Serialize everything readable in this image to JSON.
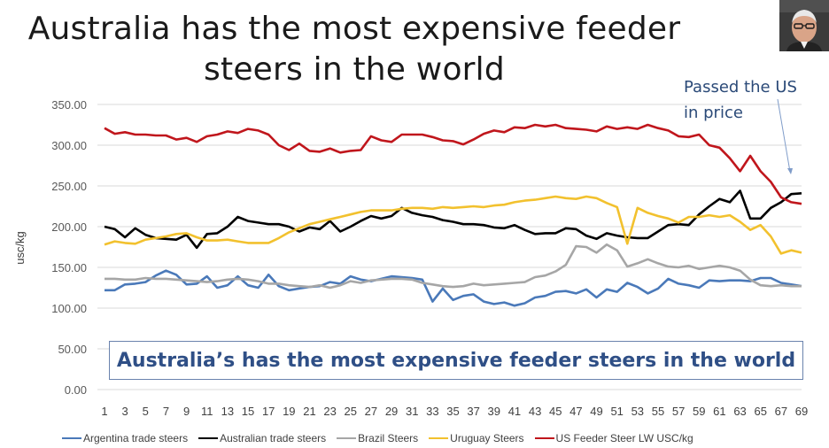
{
  "title_line1": "Australia has the most expensive feeder",
  "title_line2": "steers in the world",
  "annotation_line1": "Passed the US",
  "annotation_line2": "in price",
  "callout_text": "Australia’s has the most expensive feeder steers in the world",
  "chart_data": {
    "type": "line",
    "ylabel": "usc/kg",
    "xlabel": "",
    "ylim": [
      0,
      350
    ],
    "yticks": [
      "0.00",
      "50.00",
      "100.00",
      "150.00",
      "200.00",
      "250.00",
      "300.00",
      "350.00"
    ],
    "x": [
      1,
      2,
      3,
      4,
      5,
      6,
      7,
      8,
      9,
      10,
      11,
      12,
      13,
      14,
      15,
      16,
      17,
      18,
      19,
      20,
      21,
      22,
      23,
      24,
      25,
      26,
      27,
      28,
      29,
      30,
      31,
      32,
      33,
      34,
      35,
      36,
      37,
      38,
      39,
      40,
      41,
      42,
      43,
      44,
      45,
      46,
      47,
      48,
      49,
      50,
      51,
      52,
      53,
      54,
      55,
      56,
      57,
      58,
      59,
      60,
      61,
      62,
      63,
      64,
      65,
      66,
      67,
      68,
      69
    ],
    "xtick_labels": [
      "1",
      "3",
      "5",
      "7",
      "9",
      "11",
      "13",
      "15",
      "17",
      "19",
      "21",
      "23",
      "25",
      "27",
      "29",
      "31",
      "33",
      "35",
      "37",
      "39",
      "41",
      "43",
      "45",
      "47",
      "49",
      "51",
      "53",
      "55",
      "57",
      "59",
      "61",
      "63",
      "65",
      "67",
      "69"
    ],
    "grid": true,
    "legend_position": "bottom",
    "series": [
      {
        "name": "Argentina trade steers",
        "color": "#4a79b9",
        "values": [
          122,
          122,
          129,
          130,
          132,
          140,
          146,
          141,
          129,
          130,
          139,
          125,
          128,
          139,
          128,
          125,
          141,
          127,
          122,
          124,
          126,
          127,
          132,
          130,
          139,
          135,
          133,
          136,
          139,
          138,
          137,
          135,
          108,
          124,
          110,
          115,
          117,
          108,
          105,
          107,
          103,
          106,
          113,
          115,
          120,
          121,
          118,
          123,
          113,
          123,
          120,
          131,
          126,
          118,
          124,
          136,
          130,
          128,
          125,
          134,
          133,
          134,
          134,
          133,
          137,
          137,
          131,
          129,
          127
        ]
      },
      {
        "name": "Australian trade steers",
        "color": "#000000",
        "values": [
          200,
          197,
          187,
          198,
          190,
          186,
          185,
          184,
          190,
          174,
          191,
          192,
          200,
          212,
          207,
          205,
          203,
          203,
          200,
          194,
          199,
          197,
          207,
          194,
          200,
          207,
          213,
          210,
          213,
          223,
          217,
          214,
          212,
          208,
          206,
          203,
          203,
          202,
          199,
          198,
          202,
          196,
          191,
          192,
          192,
          198,
          197,
          189,
          185,
          192,
          189,
          187,
          186,
          186,
          194,
          202,
          203,
          202,
          215,
          225,
          234,
          230,
          244,
          210,
          210,
          223,
          230,
          240,
          241
        ]
      },
      {
        "name": "Brazil Steers",
        "color": "#a6a6a6",
        "values": [
          136,
          136,
          135,
          135,
          137,
          136,
          136,
          135,
          134,
          133,
          132,
          133,
          135,
          136,
          135,
          133,
          130,
          130,
          128,
          127,
          126,
          128,
          125,
          128,
          133,
          131,
          134,
          135,
          136,
          136,
          135,
          131,
          129,
          127,
          126,
          127,
          130,
          128,
          129,
          130,
          131,
          132,
          138,
          140,
          145,
          153,
          176,
          175,
          168,
          178,
          171,
          151,
          155,
          160,
          155,
          151,
          150,
          152,
          148,
          150,
          152,
          150,
          146,
          135,
          128,
          127,
          128,
          127,
          127
        ]
      },
      {
        "name": "Uruguay Steers",
        "color": "#f2c12e",
        "values": [
          178,
          182,
          180,
          179,
          184,
          186,
          188,
          191,
          192,
          187,
          183,
          183,
          184,
          182,
          180,
          180,
          180,
          186,
          193,
          198,
          203,
          206,
          209,
          212,
          215,
          218,
          220,
          220,
          220,
          222,
          223,
          223,
          222,
          224,
          223,
          224,
          225,
          224,
          226,
          227,
          230,
          232,
          233,
          235,
          237,
          235,
          234,
          237,
          235,
          229,
          224,
          179,
          223,
          217,
          213,
          210,
          205,
          212,
          212,
          214,
          212,
          214,
          206,
          196,
          202,
          188,
          167,
          171,
          168
        ]
      },
      {
        "name": "US Feeder Steer LW USC/kg",
        "color": "#c0161c",
        "values": [
          321,
          314,
          316,
          313,
          313,
          312,
          312,
          307,
          309,
          304,
          311,
          313,
          317,
          315,
          320,
          318,
          313,
          300,
          294,
          302,
          293,
          292,
          296,
          291,
          293,
          294,
          311,
          306,
          304,
          313,
          313,
          313,
          310,
          306,
          305,
          301,
          307,
          314,
          318,
          316,
          322,
          321,
          325,
          323,
          325,
          321,
          320,
          319,
          317,
          323,
          320,
          322,
          320,
          325,
          321,
          318,
          311,
          310,
          313,
          300,
          297,
          284,
          268,
          287,
          268,
          255,
          236,
          230,
          228
        ]
      }
    ]
  }
}
